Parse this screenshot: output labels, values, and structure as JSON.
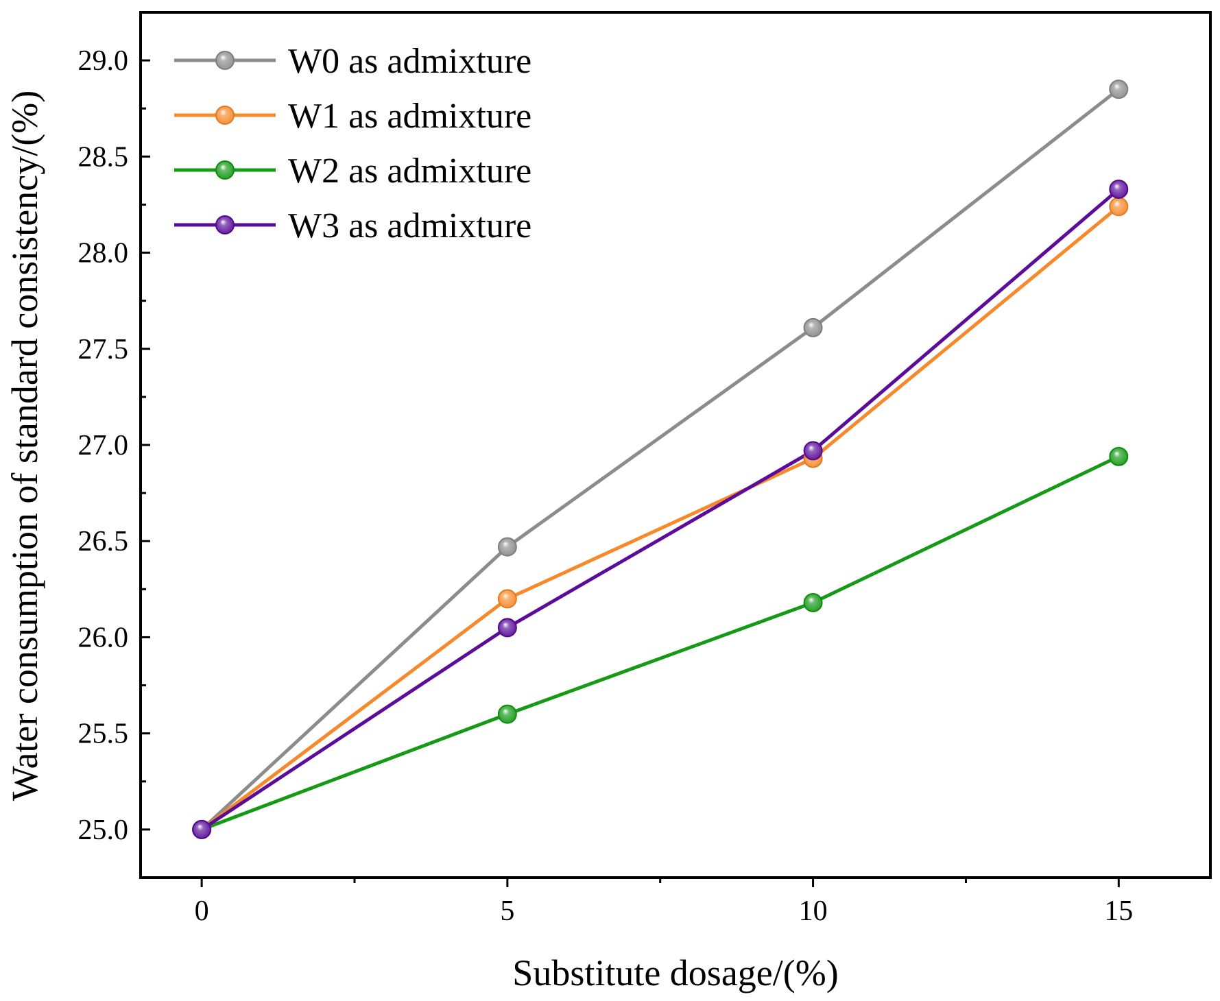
{
  "chart_data": {
    "type": "line",
    "title": "",
    "xlabel": "Substitute dosage/(%)",
    "ylabel": "Water consumption of standard consistency/(%)",
    "x": [
      0,
      5,
      10,
      15
    ],
    "xlim": [
      -1,
      16.5
    ],
    "ylim": [
      24.75,
      29.25
    ],
    "xticks": [
      0,
      5,
      10,
      15
    ],
    "xtick_labels": [
      "0",
      "5",
      "10",
      "15"
    ],
    "yticks": [
      25.0,
      25.5,
      26.0,
      26.5,
      27.0,
      27.5,
      28.0,
      28.5,
      29.0
    ],
    "ytick_labels": [
      "25.0",
      "25.5",
      "26.0",
      "26.5",
      "27.0",
      "27.5",
      "28.0",
      "28.5",
      "29.0"
    ],
    "grid": false,
    "legend_position": "top-left",
    "series": [
      {
        "name": "W0 as admixture",
        "color": "#8c8c8c",
        "values": [
          25.0,
          26.47,
          27.61,
          28.85
        ]
      },
      {
        "name": "W1 as admixture",
        "color": "#f7892a",
        "values": [
          25.0,
          26.2,
          26.93,
          28.24
        ]
      },
      {
        "name": "W2 as admixture",
        "color": "#159a15",
        "values": [
          25.0,
          25.6,
          26.18,
          26.94
        ]
      },
      {
        "name": "W3 as admixture",
        "color": "#5b0d99",
        "values": [
          25.0,
          26.05,
          26.97,
          28.33
        ]
      }
    ]
  }
}
